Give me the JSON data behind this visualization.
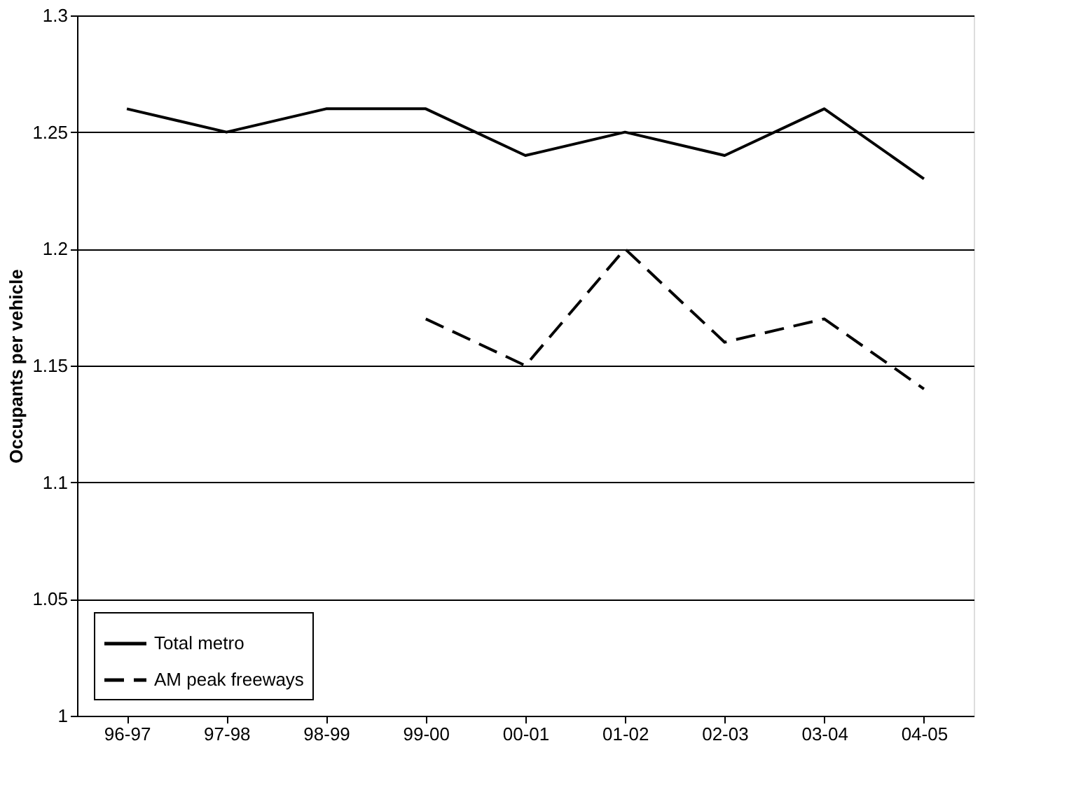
{
  "chart_data": {
    "type": "line",
    "ylabel": "Occupants per vehicle",
    "categories": [
      "96-97",
      "97-98",
      "98-99",
      "99-00",
      "00-01",
      "01-02",
      "02-03",
      "03-04",
      "04-05"
    ],
    "series": [
      {
        "name": "Total metro",
        "color": "#000000",
        "line_style": "solid",
        "values": [
          1.26,
          1.25,
          1.26,
          1.26,
          1.24,
          1.25,
          1.24,
          1.26,
          1.23
        ]
      },
      {
        "name": "AM peak freeways",
        "color": "#000000",
        "line_style": "dashed",
        "values": [
          null,
          null,
          null,
          1.17,
          1.15,
          1.2,
          1.16,
          1.17,
          1.14
        ]
      }
    ],
    "ylim": [
      1,
      1.3
    ],
    "yticks": [
      1,
      1.05,
      1.1,
      1.15,
      1.2,
      1.25,
      1.3
    ],
    "grid": "y",
    "legend": "bottom left",
    "marker": "none"
  }
}
